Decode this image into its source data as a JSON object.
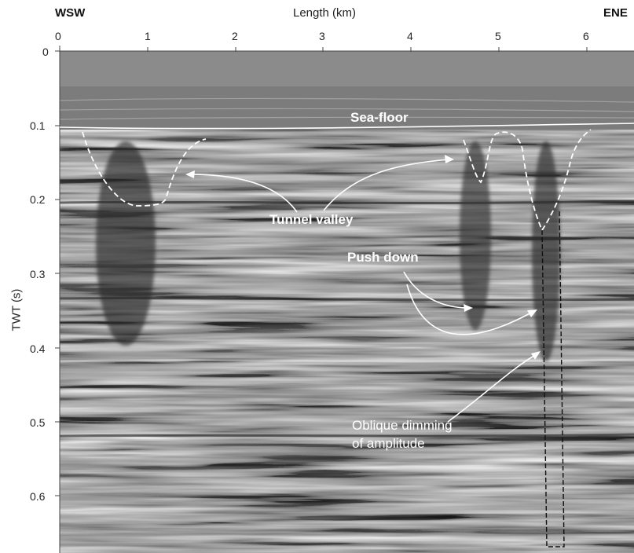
{
  "header": {
    "left": "WSW",
    "right": "ENE",
    "x_axis_title": "Length (km)"
  },
  "x_ticks": [
    "0",
    "1",
    "2",
    "3",
    "4",
    "5",
    "6"
  ],
  "y_ticks": [
    "0",
    "0.1",
    "0.2",
    "0.3",
    "0.4",
    "0.5",
    "0.6"
  ],
  "y_axis_title": "TWT (s)",
  "annotations": {
    "sea_floor": "Sea-floor",
    "tunnel_valley": "Tunnel valley",
    "push_down": "Push down",
    "oblique_line1": "Oblique dimming",
    "oblique_line2": "of amplitude"
  }
}
